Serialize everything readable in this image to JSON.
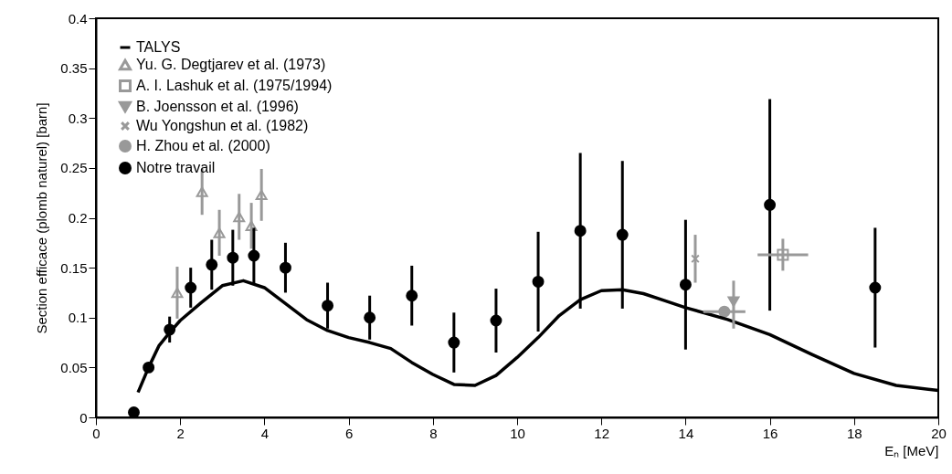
{
  "chart_data": {
    "type": "scatter",
    "xlabel": "Eₙ [MeV]",
    "ylabel": "Section efficace (plomb naturel) [barn]",
    "xlim": [
      0,
      20
    ],
    "ylim": [
      0,
      0.4
    ],
    "xticks": [
      0,
      2,
      4,
      6,
      8,
      10,
      12,
      14,
      16,
      18,
      20
    ],
    "yticks": [
      0,
      0.05,
      0.1,
      0.15,
      0.2,
      0.25,
      0.3,
      0.35,
      0.4
    ],
    "grid": false,
    "legend": "top left",
    "series": [
      {
        "name": "TALYS",
        "type": "line",
        "color": "#000000",
        "line_style": "solid",
        "x": [
          1.0,
          1.25,
          1.5,
          1.75,
          2,
          2.5,
          3,
          3.5,
          4,
          4.5,
          5,
          5.5,
          6,
          6.5,
          7,
          7.5,
          8,
          8.5,
          9,
          9.5,
          10,
          10.5,
          11,
          11.5,
          12,
          12.5,
          13,
          13.5,
          14,
          15,
          16,
          17,
          18,
          19,
          20
        ],
        "values": [
          0.025,
          0.05,
          0.072,
          0.085,
          0.097,
          0.115,
          0.132,
          0.137,
          0.13,
          0.114,
          0.098,
          0.087,
          0.08,
          0.075,
          0.069,
          0.055,
          0.043,
          0.033,
          0.032,
          0.042,
          0.06,
          0.08,
          0.102,
          0.118,
          0.127,
          0.128,
          0.124,
          0.117,
          0.11,
          0.098,
          0.083,
          0.063,
          0.044,
          0.032,
          0.027
        ]
      },
      {
        "name": "Yu. G. Degtjarev et al. (1973)",
        "color": "#999999",
        "marker": "triangle",
        "x": [
          1.93,
          2.52,
          2.93,
          3.4,
          3.69,
          3.93
        ],
        "values": [
          0.125,
          0.226,
          0.185,
          0.201,
          0.192,
          0.223
        ],
        "errors": [
          0.026,
          0.023,
          0.023,
          0.023,
          0.023,
          0.026
        ]
      },
      {
        "name": "A. I. Lashuk et al. (1975/1994)",
        "color": "#999999",
        "marker": "square",
        "x": [
          16.31
        ],
        "values": [
          0.163
        ],
        "errors": [
          0.016
        ],
        "xerrors": [
          0.6
        ]
      },
      {
        "name": "B. Joensson et al. (1996)",
        "color": "#999999",
        "marker": "triangle-down",
        "x": [
          15.14
        ],
        "values": [
          0.116
        ],
        "errors": [
          [
            0.089,
            0.137
          ]
        ]
      },
      {
        "name": "Wu Yongshun et al. (1982)",
        "color": "#999999",
        "marker": "cross",
        "x": [
          14.23
        ],
        "values": [
          0.159
        ],
        "errors": [
          0.024
        ]
      },
      {
        "name": "H. Zhou et al. (2000)",
        "color": "#999999",
        "marker": "circle",
        "x": [
          14.92
        ],
        "values": [
          0.106
        ],
        "xerrors": [
          0.5
        ]
      },
      {
        "name": "Notre travail",
        "color": "#000000",
        "marker": "circle",
        "x": [
          0.9,
          1.25,
          1.75,
          2.25,
          2.75,
          3.25,
          3.75,
          4.5,
          5.5,
          6.5,
          7.5,
          8.5,
          9.5,
          10.5,
          11.5,
          12.5,
          14,
          16,
          18.5
        ],
        "values": [
          0.005,
          0.05,
          0.088,
          0.13,
          0.153,
          0.16,
          0.162,
          0.15,
          0.112,
          0.1,
          0.122,
          0.075,
          0.097,
          0.136,
          0.187,
          0.183,
          0.133,
          0.213,
          0.13
        ],
        "errors": [
          null,
          0.005,
          0.013,
          0.02,
          0.025,
          0.028,
          0.028,
          0.025,
          0.023,
          0.022,
          0.03,
          0.03,
          0.032,
          0.05,
          0.078,
          0.074,
          0.065,
          0.106,
          0.06
        ]
      }
    ]
  }
}
